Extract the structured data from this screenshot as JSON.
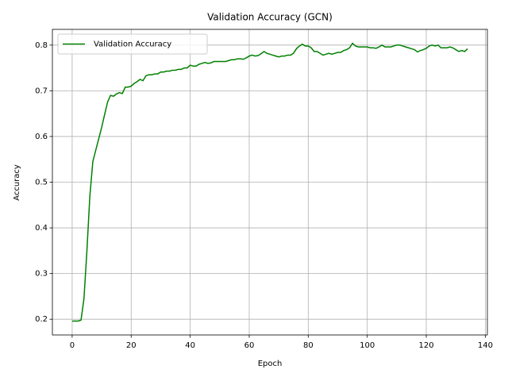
{
  "chart_data": {
    "type": "line",
    "title": "Validation Accuracy (GCN)",
    "x_label": "Epoch",
    "y_label": "Accuracy",
    "x": [
      0,
      1,
      2,
      3,
      4,
      5,
      6,
      7,
      8,
      9,
      10,
      11,
      12,
      13,
      14,
      15,
      16,
      17,
      18,
      19,
      20,
      21,
      22,
      23,
      24,
      25,
      26,
      27,
      28,
      29,
      30,
      31,
      32,
      33,
      34,
      35,
      36,
      37,
      38,
      39,
      40,
      41,
      42,
      43,
      44,
      45,
      46,
      47,
      48,
      49,
      50,
      51,
      52,
      53,
      54,
      55,
      56,
      57,
      58,
      59,
      60,
      61,
      62,
      63,
      64,
      65,
      66,
      67,
      68,
      69,
      70,
      71,
      72,
      73,
      74,
      75,
      76,
      77,
      78,
      79,
      80,
      81,
      82,
      83,
      84,
      85,
      86,
      87,
      88,
      89,
      90,
      91,
      92,
      93,
      94,
      95,
      96,
      97,
      98,
      99,
      100,
      101,
      102,
      103,
      104,
      105,
      106,
      107,
      108,
      109,
      110,
      111,
      112,
      113,
      114,
      115,
      116,
      117,
      118,
      119,
      120,
      121,
      122,
      123,
      124,
      125,
      126,
      127,
      128,
      129,
      130,
      131,
      132,
      133,
      134
    ],
    "series": [
      {
        "name": "Validation Accuracy",
        "color": "#008000",
        "values": [
          0.196,
          0.196,
          0.196,
          0.198,
          0.245,
          0.35,
          0.47,
          0.545,
          0.57,
          0.595,
          0.62,
          0.648,
          0.675,
          0.69,
          0.688,
          0.693,
          0.696,
          0.694,
          0.708,
          0.708,
          0.71,
          0.716,
          0.72,
          0.725,
          0.722,
          0.733,
          0.735,
          0.735,
          0.737,
          0.737,
          0.741,
          0.741,
          0.743,
          0.743,
          0.745,
          0.745,
          0.747,
          0.747,
          0.75,
          0.75,
          0.756,
          0.754,
          0.754,
          0.758,
          0.76,
          0.762,
          0.76,
          0.761,
          0.764,
          0.764,
          0.764,
          0.764,
          0.764,
          0.766,
          0.768,
          0.768,
          0.77,
          0.77,
          0.769,
          0.772,
          0.776,
          0.778,
          0.776,
          0.777,
          0.781,
          0.786,
          0.782,
          0.78,
          0.778,
          0.776,
          0.774,
          0.776,
          0.776,
          0.778,
          0.778,
          0.782,
          0.792,
          0.798,
          0.802,
          0.798,
          0.798,
          0.794,
          0.786,
          0.786,
          0.782,
          0.778,
          0.78,
          0.782,
          0.78,
          0.782,
          0.784,
          0.784,
          0.788,
          0.79,
          0.794,
          0.804,
          0.798,
          0.796,
          0.796,
          0.796,
          0.796,
          0.794,
          0.794,
          0.793,
          0.796,
          0.8,
          0.796,
          0.796,
          0.796,
          0.798,
          0.8,
          0.8,
          0.798,
          0.796,
          0.794,
          0.792,
          0.79,
          0.785,
          0.788,
          0.79,
          0.793,
          0.798,
          0.8,
          0.798,
          0.8,
          0.794,
          0.794,
          0.794,
          0.796,
          0.794,
          0.79,
          0.786,
          0.788,
          0.786,
          0.792
        ]
      }
    ],
    "xlim": [
      -6.7,
      140.7
    ],
    "ylim": [
      0.1656,
      0.8344
    ],
    "xticks": [
      0,
      20,
      40,
      60,
      80,
      100,
      120,
      140
    ],
    "yticks": [
      0.2,
      0.3,
      0.4,
      0.5,
      0.6,
      0.7,
      0.8
    ],
    "grid": true,
    "legend": "upper left"
  }
}
